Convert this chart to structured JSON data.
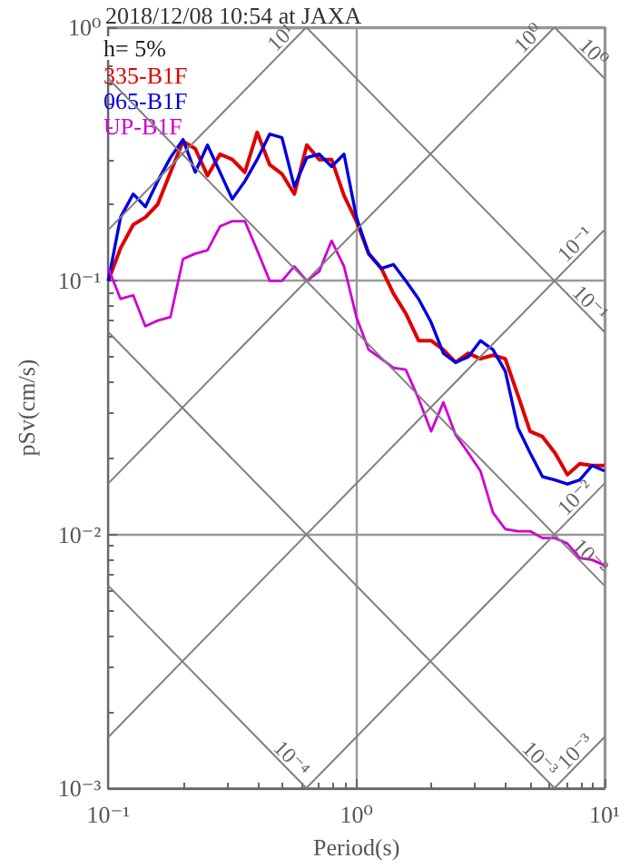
{
  "chart_data": {
    "type": "line",
    "title": "2018/12/08 10:54 at JAXA",
    "xlabel": "Period(s)",
    "ylabel": "pSv(cm/s)",
    "annotations": [
      "h= 5%"
    ],
    "log": "xy",
    "grid": true,
    "legend": "top left",
    "xlim": [
      0.1,
      10
    ],
    "xticks": [
      {
        "value": 0.1,
        "label": "10⁻¹"
      },
      {
        "value": 1,
        "label": "10⁰"
      },
      {
        "value": 10,
        "label": "10¹"
      }
    ],
    "ylim": [
      0.001,
      1
    ],
    "yticks": [
      {
        "value": 0.001,
        "label": "10⁻³"
      },
      {
        "value": 0.01,
        "label": "10⁻²"
      },
      {
        "value": 0.1,
        "label": "10⁻¹"
      },
      {
        "value": 1,
        "label": "10⁰"
      }
    ],
    "x": [
      0.1,
      0.112,
      0.126,
      0.141,
      0.158,
      0.178,
      0.2,
      0.224,
      0.251,
      0.282,
      0.316,
      0.355,
      0.398,
      0.447,
      0.501,
      0.562,
      0.631,
      0.708,
      0.794,
      0.891,
      1,
      1.12,
      1.26,
      1.41,
      1.58,
      1.78,
      2,
      2.24,
      2.51,
      2.82,
      3.16,
      3.55,
      3.98,
      4.47,
      5.01,
      5.62,
      6.31,
      7.08,
      7.94,
      8.91,
      10
    ],
    "series": [
      {
        "name": "335-B1F",
        "color": "#e00000",
        "values": [
          0.1,
          0.1345,
          0.1665,
          0.178,
          0.2,
          0.268,
          0.355,
          0.332,
          0.26,
          0.316,
          0.301,
          0.268,
          0.385,
          0.287,
          0.264,
          0.22,
          0.343,
          0.301,
          0.301,
          0.217,
          0.172,
          0.128,
          0.112,
          0.0891,
          0.0744,
          0.0581,
          0.0581,
          0.0535,
          0.0477,
          0.0518,
          0.0493,
          0.0509,
          0.0493,
          0.0355,
          0.0255,
          0.0243,
          0.021,
          0.0172,
          0.019,
          0.0187,
          0.0187
        ]
      },
      {
        "name": "065-B1F",
        "color": "#0000e0",
        "values": [
          0.1,
          0.178,
          0.22,
          0.196,
          0.247,
          0.306,
          0.361,
          0.268,
          0.343,
          0.268,
          0.21,
          0.247,
          0.301,
          0.379,
          0.367,
          0.235,
          0.306,
          0.316,
          0.282,
          0.316,
          0.178,
          0.128,
          0.112,
          0.116,
          0.1,
          0.0849,
          0.0686,
          0.0518,
          0.0477,
          0.0501,
          0.0581,
          0.0535,
          0.044,
          0.0264,
          0.021,
          0.0169,
          0.0164,
          0.0158,
          0.0164,
          0.0187,
          0.0178
        ]
      },
      {
        "name": "UP-B1F",
        "color": "#d000d0",
        "values": [
          0.112,
          0.0849,
          0.0877,
          0.0663,
          0.0697,
          0.072,
          0.122,
          0.128,
          0.132,
          0.164,
          0.172,
          0.172,
          0.132,
          0.1,
          0.1,
          0.114,
          0.1,
          0.109,
          0.144,
          0.114,
          0.072,
          0.0535,
          0.0493,
          0.0454,
          0.0447,
          0.0343,
          0.0255,
          0.0332,
          0.0247,
          0.021,
          0.0178,
          0.0122,
          0.0105,
          0.0103,
          0.0103,
          0.00968,
          0.00968,
          0.00921,
          0.00807,
          0.00794,
          0.00756
        ]
      },
      {
        "name": "10⁻⁴",
        "color": "#808080",
        "x": [
          0.1,
          0.628
        ],
        "values": [
          0.00628,
          0.001
        ]
      },
      {
        "name": "10⁻³",
        "color": "#808080",
        "x": [
          0.1,
          6.28
        ],
        "values": [
          0.0628,
          0.001
        ]
      },
      {
        "name": "10⁻²",
        "color": "#808080",
        "x": [
          0.1,
          10
        ],
        "values": [
          0.628,
          0.00628
        ]
      },
      {
        "name": "10⁻¹",
        "color": "#808080",
        "x": [
          0.628,
          10
        ],
        "values": [
          1,
          0.0628
        ]
      },
      {
        "name": "10⁰",
        "color": "#808080",
        "x": [
          6.28,
          10
        ],
        "values": [
          1,
          0.628
        ]
      },
      {
        "name": "10¹",
        "color": "#808080",
        "x": [
          0.1,
          0.628
        ],
        "values": [
          0.159,
          1
        ]
      },
      {
        "name": "10⁰",
        "color": "#808080",
        "x": [
          0.1,
          6.28
        ],
        "values": [
          0.0159,
          1
        ]
      },
      {
        "name": "10⁻¹",
        "color": "#808080",
        "x": [
          0.1,
          10
        ],
        "values": [
          0.00159,
          0.159
        ]
      },
      {
        "name": "10⁻²",
        "color": "#808080",
        "x": [
          0.628,
          10
        ],
        "values": [
          0.001,
          0.0159
        ]
      },
      {
        "name": "10⁻³",
        "color": "#808080",
        "x": [
          6.28,
          10
        ],
        "values": [
          0.001,
          0.00159
        ]
      }
    ]
  }
}
